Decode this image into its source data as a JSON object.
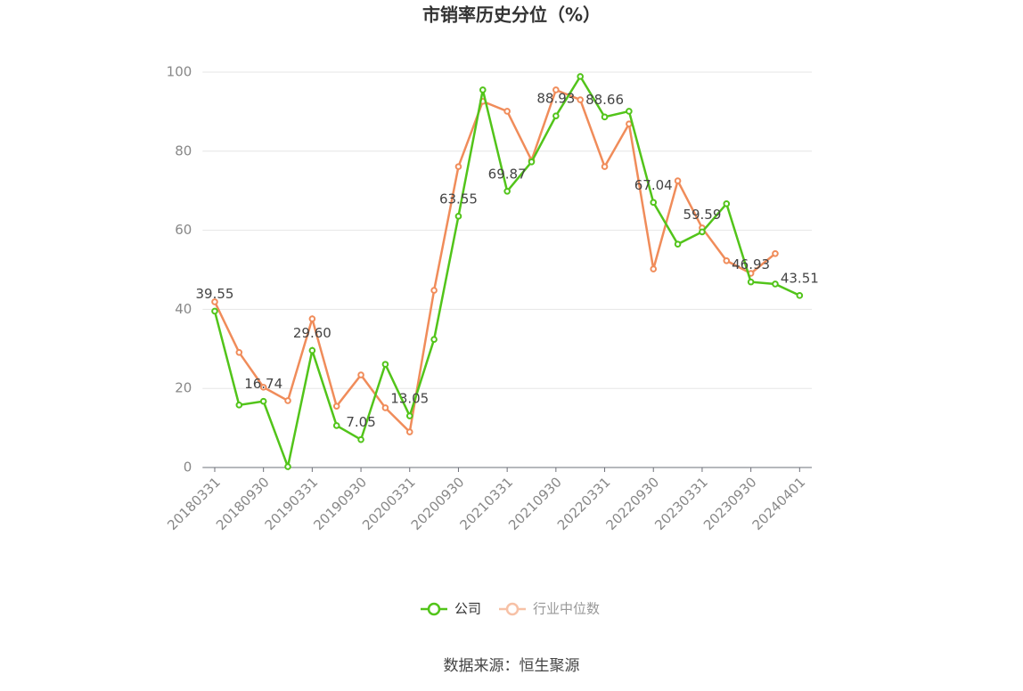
{
  "chart_data": {
    "type": "line",
    "title": "市销率历史分位（%）",
    "categories": [
      "20180331",
      null,
      "20180930",
      null,
      "20190331",
      null,
      "20190930",
      null,
      "20200331",
      null,
      "20200930",
      null,
      "20210331",
      null,
      "20210930",
      null,
      "20220331",
      null,
      "20220930",
      null,
      "20230331",
      null,
      "20230930",
      null,
      "20240401"
    ],
    "series": [
      {
        "name": "公司",
        "color": "#52c41a",
        "values": [
          39.55,
          15.8,
          16.74,
          0.2,
          29.6,
          10.6,
          7.05,
          26.1,
          13.05,
          32.4,
          63.55,
          95.5,
          69.87,
          77.3,
          88.93,
          98.9,
          88.66,
          90.1,
          67.04,
          56.5,
          59.59,
          66.7,
          46.93,
          46.4,
          43.51
        ],
        "value_labels": [
          "39.55",
          null,
          "16.74",
          null,
          "29.60",
          null,
          "7.05",
          null,
          "13.05",
          null,
          "63.55",
          null,
          "69.87",
          null,
          "88.93",
          null,
          "88.66",
          null,
          "67.04",
          null,
          "59.59",
          null,
          "46.93",
          null,
          "43.51"
        ]
      },
      {
        "name": "行业中位数",
        "color": "#f08c5a",
        "values": [
          41.9,
          29.1,
          20.3,
          16.9,
          37.6,
          15.5,
          23.4,
          15.1,
          9.0,
          44.8,
          76.1,
          92.6,
          90.1,
          77.7,
          95.5,
          93.0,
          76.1,
          86.9,
          50.2,
          72.5,
          60.6,
          52.3,
          49.1,
          54.1,
          null
        ]
      }
    ],
    "ylim": [
      0,
      100
    ],
    "yticks": [
      0,
      20,
      40,
      60,
      80,
      100
    ],
    "grid": true,
    "source": "数据来源：恒生聚源"
  }
}
